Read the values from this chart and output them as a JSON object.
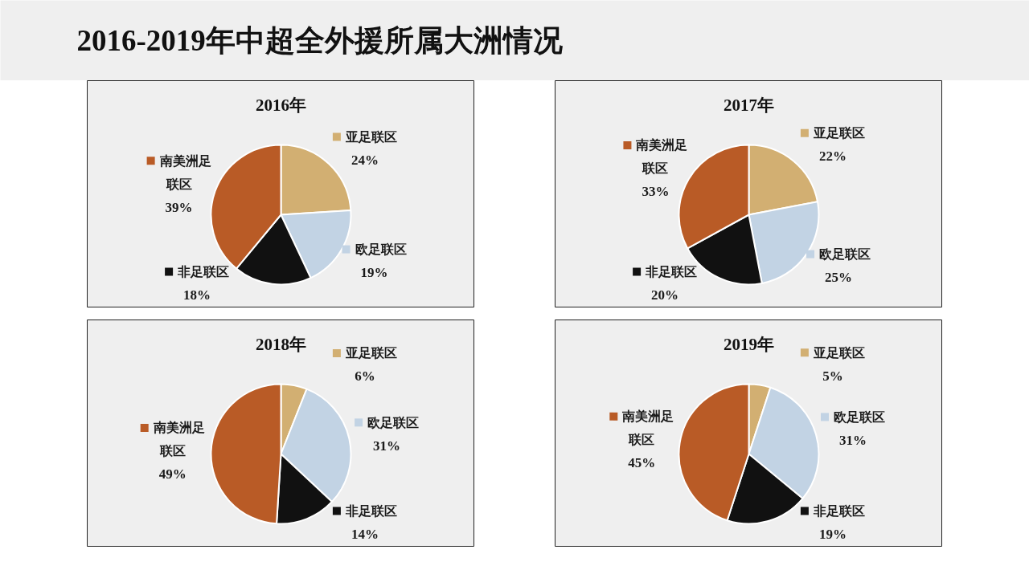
{
  "chart_data": [
    {
      "type": "other",
      "title": "2016-2019年中超全外援所属大洲情况"
    },
    {
      "type": "pie",
      "title": "2016年",
      "categories": [
        "亚足联区",
        "欧足联区",
        "非足联区",
        "南美洲足联区"
      ],
      "values": [
        24,
        19,
        18,
        39
      ],
      "value_labels": [
        "24%",
        "19%",
        "18%",
        "39%"
      ],
      "colors": [
        "#d2af72",
        "#c2d3e4",
        "#111111",
        "#b95b26"
      ],
      "legend": "left"
    },
    {
      "type": "pie",
      "title": "2017年",
      "categories": [
        "亚足联区",
        "欧足联区",
        "非足联区",
        "南美洲足联区"
      ],
      "values": [
        22,
        25,
        20,
        33
      ],
      "value_labels": [
        "22%",
        "25%",
        "20%",
        "33%"
      ],
      "colors": [
        "#d2af72",
        "#c2d3e4",
        "#111111",
        "#b95b26"
      ],
      "legend": "left"
    },
    {
      "type": "pie",
      "title": "2018年",
      "categories": [
        "亚足联区",
        "欧足联区",
        "非足联区",
        "南美洲足联区"
      ],
      "values": [
        6,
        31,
        14,
        49
      ],
      "value_labels": [
        "6%",
        "31%",
        "14%",
        "49%"
      ],
      "colors": [
        "#d2af72",
        "#c2d3e4",
        "#111111",
        "#b95b26"
      ],
      "legend": "left"
    },
    {
      "type": "pie",
      "title": "2019年",
      "categories": [
        "亚足联区",
        "欧足联区",
        "非足联区",
        "南美洲足联区"
      ],
      "values": [
        5,
        31,
        19,
        45
      ],
      "value_labels": [
        "5%",
        "31%",
        "19%",
        "45%"
      ],
      "colors": [
        "#d2af72",
        "#c2d3e4",
        "#111111",
        "#b95b26"
      ],
      "legend": "left"
    }
  ]
}
